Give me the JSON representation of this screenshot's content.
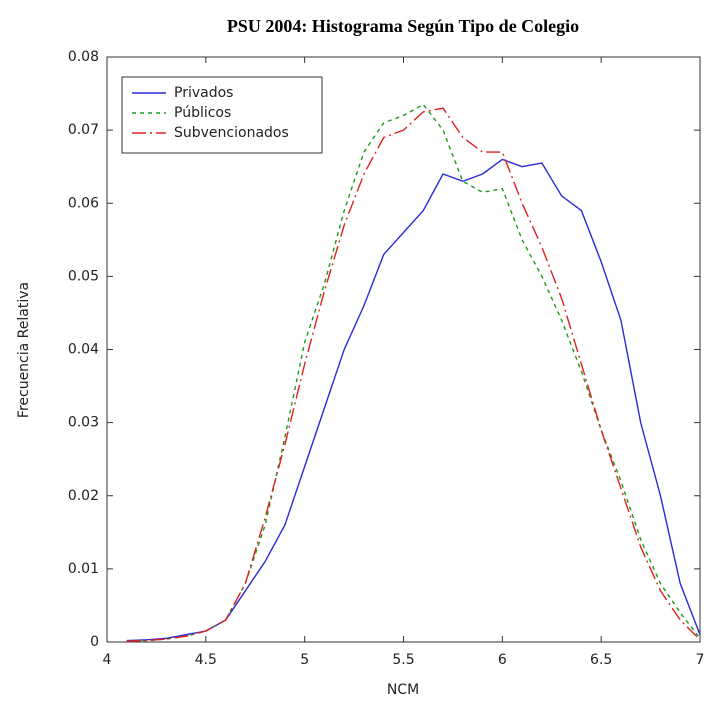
{
  "chart_data": {
    "type": "line",
    "title": "PSU 2004: Histograma Según Tipo de Colegio",
    "xlabel": "NCM",
    "ylabel": "Frecuencia Relativa",
    "x": [
      4.1,
      4.2,
      4.3,
      4.4,
      4.5,
      4.6,
      4.7,
      4.8,
      4.9,
      5.0,
      5.1,
      5.2,
      5.3,
      5.4,
      5.5,
      5.6,
      5.7,
      5.8,
      5.9,
      6.0,
      6.1,
      6.2,
      6.3,
      6.4,
      6.5,
      6.6,
      6.7,
      6.8,
      6.9,
      7.0
    ],
    "series": [
      {
        "name": "Privados",
        "color": "#2a2ad8",
        "style": "solid",
        "values": [
          0.0002,
          0.0003,
          0.0005,
          0.001,
          0.0015,
          0.003,
          0.007,
          0.011,
          0.016,
          0.024,
          0.032,
          0.04,
          0.046,
          0.053,
          0.056,
          0.059,
          0.064,
          0.063,
          0.064,
          0.066,
          0.065,
          0.0655,
          0.061,
          0.059,
          0.052,
          0.044,
          0.03,
          0.02,
          0.008,
          0.001
        ]
      },
      {
        "name": "Públicos",
        "color": "#1a9a1a",
        "style": "dotted",
        "values": [
          0.0001,
          0.0002,
          0.0004,
          0.0008,
          0.0015,
          0.003,
          0.008,
          0.016,
          0.028,
          0.041,
          0.049,
          0.059,
          0.067,
          0.071,
          0.072,
          0.0735,
          0.07,
          0.063,
          0.0615,
          0.062,
          0.055,
          0.05,
          0.044,
          0.037,
          0.029,
          0.022,
          0.014,
          0.008,
          0.004,
          0.0005
        ]
      },
      {
        "name": "Subvencionados",
        "color": "#e02020",
        "style": "dashdot",
        "values": [
          0.0001,
          0.0002,
          0.0004,
          0.0008,
          0.0015,
          0.003,
          0.008,
          0.017,
          0.027,
          0.038,
          0.048,
          0.057,
          0.064,
          0.069,
          0.07,
          0.0725,
          0.073,
          0.069,
          0.067,
          0.067,
          0.06,
          0.054,
          0.047,
          0.038,
          0.029,
          0.021,
          0.013,
          0.007,
          0.003,
          0.0003
        ]
      }
    ],
    "xlim": [
      4,
      7
    ],
    "xticks": [
      4,
      4.5,
      5,
      5.5,
      6,
      6.5,
      7
    ],
    "ylim": [
      0,
      0.08
    ],
    "yticks": [
      0,
      0.01,
      0.02,
      0.03,
      0.04,
      0.05,
      0.06,
      0.07,
      0.08
    ],
    "grid": false,
    "legend": "upper left"
  }
}
